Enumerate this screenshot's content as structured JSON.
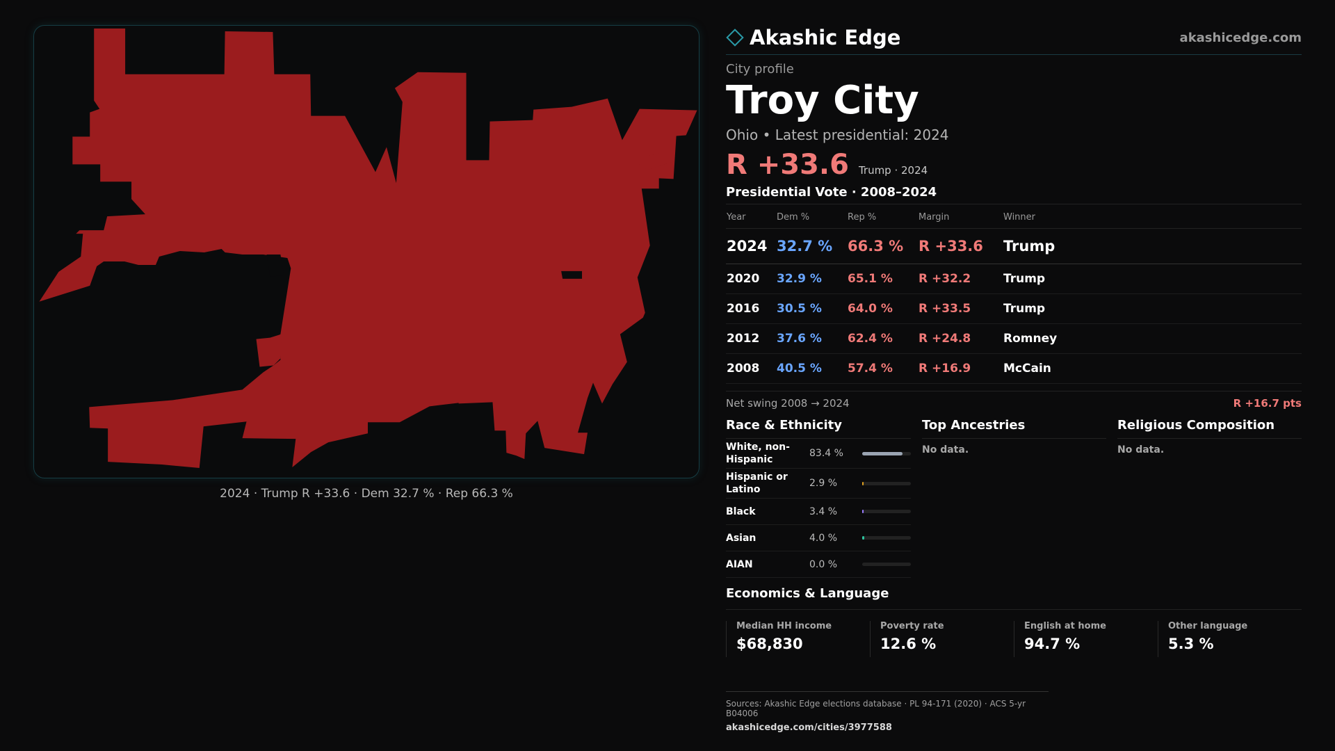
{
  "brand": {
    "name": "Akashic Edge",
    "url": "akashicedge.com",
    "icon": "diamond-outline-icon",
    "accent": "#2a9aa8"
  },
  "profile": {
    "eyebrow": "City profile",
    "title": "Troy City",
    "subtitle": "Ohio • Latest presidential: 2024",
    "headline_margin": "R +33.6",
    "headline_sub": "Trump · 2024"
  },
  "map": {
    "caption": "2024 · Trump R +33.6 · Dem 32.7 % · Rep 66.3 %",
    "fill_color": "#9b1c1e"
  },
  "vote_table": {
    "title": "Presidential Vote · 2008–2024",
    "headers": [
      "Year",
      "Dem %",
      "Rep %",
      "Margin",
      "Winner"
    ],
    "rows": [
      {
        "year": "2024",
        "dem": "32.7 %",
        "rep": "66.3 %",
        "margin": "R +33.6",
        "winner": "Trump"
      },
      {
        "year": "2020",
        "dem": "32.9 %",
        "rep": "65.1 %",
        "margin": "R +32.2",
        "winner": "Trump"
      },
      {
        "year": "2016",
        "dem": "30.5 %",
        "rep": "64.0 %",
        "margin": "R +33.5",
        "winner": "Trump"
      },
      {
        "year": "2012",
        "dem": "37.6 %",
        "rep": "62.4 %",
        "margin": "R +24.8",
        "winner": "Romney"
      },
      {
        "year": "2008",
        "dem": "40.5 %",
        "rep": "57.4 %",
        "margin": "R +16.9",
        "winner": "McCain"
      }
    ],
    "colors": {
      "dem": "#6aa6ff",
      "rep": "#f07a78"
    }
  },
  "swing": {
    "label": "Net swing 2008 → 2024",
    "value": "R +16.7 pts"
  },
  "race": {
    "title": "Race & Ethnicity",
    "rows": [
      {
        "label": "White, non-Hispanic",
        "value": "83.4 %",
        "pct": 83.4,
        "color": "#9aa4b2"
      },
      {
        "label": "Hispanic or Latino",
        "value": "2.9 %",
        "pct": 2.9,
        "color": "#e0a020"
      },
      {
        "label": "Black",
        "value": "3.4 %",
        "pct": 3.4,
        "color": "#9a7cff"
      },
      {
        "label": "Asian",
        "value": "4.0 %",
        "pct": 4.0,
        "color": "#2ec4a0"
      },
      {
        "label": "AIAN",
        "value": "0.0 %",
        "pct": 0.0,
        "color": "#c86060"
      }
    ]
  },
  "ancestries": {
    "title": "Top Ancestries",
    "empty": "No data."
  },
  "religion": {
    "title": "Religious Composition",
    "empty": "No data."
  },
  "economics": {
    "title": "Economics & Language",
    "cards": [
      {
        "label": "Median HH income",
        "value": "$68,830"
      },
      {
        "label": "Poverty rate",
        "value": "12.6 %"
      },
      {
        "label": "English at home",
        "value": "94.7 %"
      },
      {
        "label": "Other language",
        "value": "5.3 %"
      }
    ]
  },
  "sources": {
    "line": "Sources: Akashic Edge elections database · PL 94-171 (2020) · ACS 5-yr B04006",
    "url": "akashicedge.com/cities/3977588"
  }
}
